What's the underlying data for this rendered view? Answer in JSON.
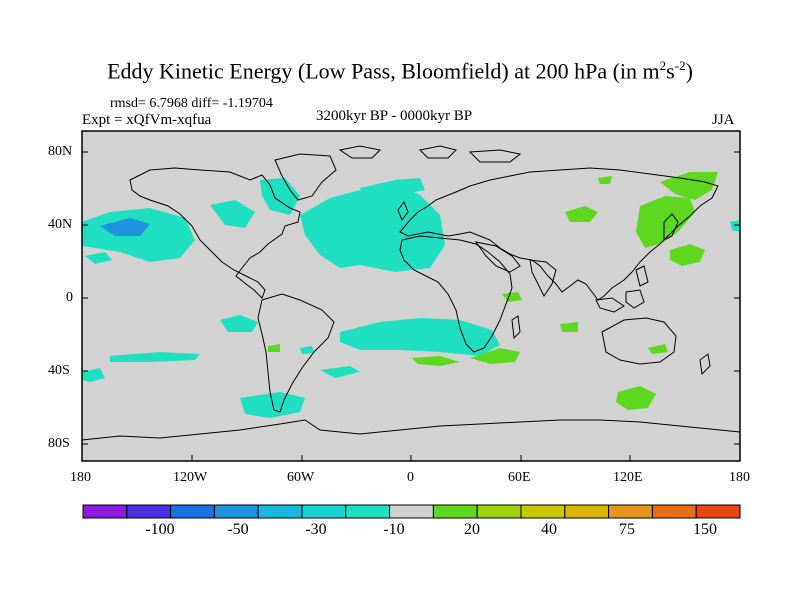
{
  "title": {
    "main": "Eddy Kinetic Energy (Low Pass, Bloomfield) at 200 hPa (in m",
    "sup1": "2",
    "mid": "s",
    "sup2": "-2",
    "end": ")"
  },
  "stats": {
    "line": "rmsd= 6.7968 diff= -1.19704"
  },
  "experiment": "Expt = xQfVm-xqfua",
  "period": "3200kyr BP - 0000kyr BP",
  "season": "JJA",
  "lat_ticks": [
    "80N",
    "40N",
    "0",
    "40S",
    "80S"
  ],
  "lon_ticks": [
    "180",
    "120W",
    "60W",
    "0",
    "60E",
    "120E",
    "180"
  ],
  "colorbar": {
    "labels": [
      "-100",
      "-50",
      "-30",
      "-10",
      "20",
      "40",
      "75",
      "150"
    ],
    "colors": [
      "#8a1be0",
      "#4b2fe6",
      "#1e6ee6",
      "#1e94e0",
      "#18b8de",
      "#16d2d2",
      "#1ee0c0",
      "#d2d2d2",
      "#5ed81e",
      "#a0d20c",
      "#c8c800",
      "#dcb400",
      "#e6961e",
      "#e66e14",
      "#e64614"
    ]
  },
  "map_colors": {
    "background": "#d2d2d2",
    "cyan": "#1ee0c0",
    "teal": "#16d2d2",
    "blue": "#1e94e0",
    "green": "#5ed81e"
  }
}
